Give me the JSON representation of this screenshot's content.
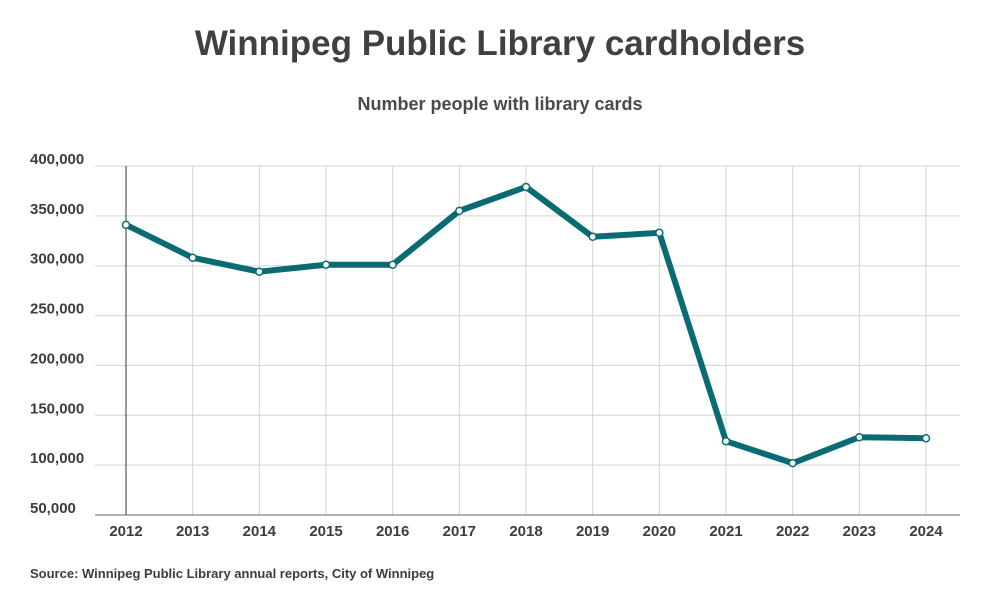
{
  "chart_data": {
    "type": "line",
    "title": "Winnipeg Public Library cardholders",
    "subtitle": "Number people with library cards",
    "source": "Source: Winnipeg Public Library annual reports, City of Winnipeg",
    "categories": [
      "2012",
      "2013",
      "2014",
      "2015",
      "2016",
      "2017",
      "2018",
      "2019",
      "2020",
      "2021",
      "2022",
      "2023",
      "2024"
    ],
    "series": [
      {
        "values": [
          341000,
          308000,
          294000,
          301000,
          301000,
          355000,
          379000,
          329000,
          333000,
          124000,
          102000,
          128000,
          127000
        ]
      }
    ],
    "ylim": [
      50000,
      400000
    ],
    "yticks": [
      50000,
      100000,
      150000,
      200000,
      250000,
      300000,
      350000,
      400000
    ],
    "ytick_labels": [
      "50,000",
      "100,000",
      "150,000",
      "200,000",
      "250,000",
      "300,000",
      "350,000",
      "400,000"
    ],
    "grid": true,
    "colors": {
      "line": "#0b6b73",
      "marker_fill": "#ffffff",
      "grid": "#d3d3d3",
      "axis": "#333333"
    }
  }
}
